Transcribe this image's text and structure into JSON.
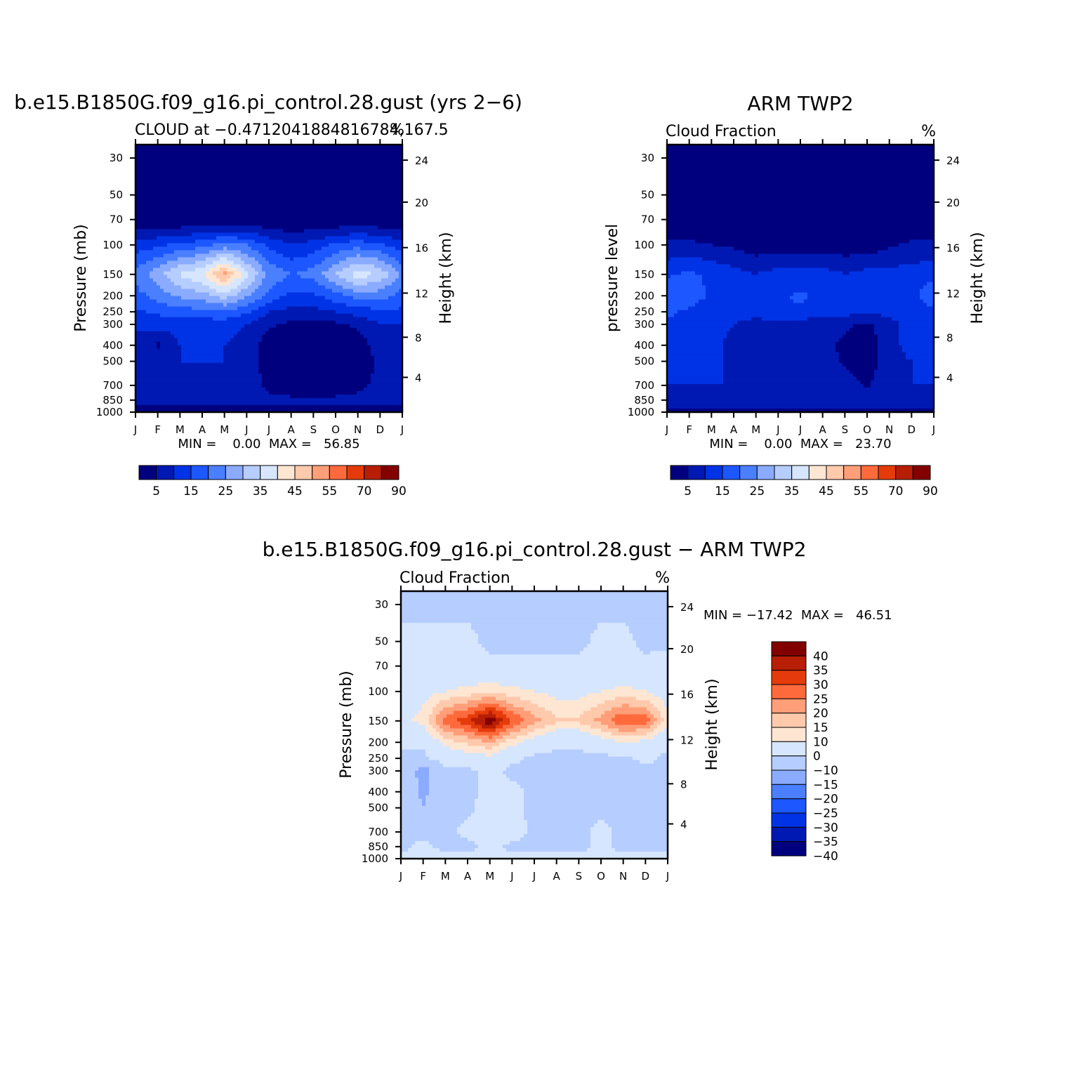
{
  "months": [
    "J",
    "F",
    "M",
    "A",
    "M",
    "J",
    "J",
    "A",
    "S",
    "O",
    "N",
    "D",
    "J"
  ],
  "pressure_ticks": [
    30,
    50,
    70,
    100,
    150,
    200,
    250,
    300,
    400,
    500,
    700,
    850,
    1000
  ],
  "height_ticks": [
    24,
    20,
    16,
    12,
    8,
    4
  ],
  "panels": {
    "model": {
      "title": "b.e15.B1850G.f09_g16.pi_control.28.gust (yrs 2−6)",
      "subtitle_left": "CLOUD at −0.4712041884816784,167.5",
      "subtitle_right": "%",
      "ylabel_left": "Pressure (mb)",
      "ylabel_right": "Height (km)",
      "minmax": "MIN =    0.00  MAX =   56.85"
    },
    "obs": {
      "title": "ARM TWP2",
      "subtitle_left": "Cloud Fraction",
      "subtitle_right": "%",
      "ylabel_left": "pressure level",
      "ylabel_right": "Height (km)",
      "minmax": "MIN =    0.00  MAX =   23.70"
    },
    "diff": {
      "title": "b.e15.B1850G.f09_g16.pi_control.28.gust − ARM TWP2",
      "subtitle_left": "Cloud Fraction",
      "subtitle_right": "%",
      "ylabel_left": "Pressure (mb)",
      "ylabel_right": "Height (km)",
      "minmax": "MIN = −17.42  MAX =   46.51"
    }
  },
  "colorbars": {
    "abs": {
      "colors": [
        "#00007f",
        "#0019b2",
        "#0033e5",
        "#1d57ff",
        "#4a7fff",
        "#8aabff",
        "#b6cdff",
        "#d6e6ff",
        "#ffe6d2",
        "#ffc9ac",
        "#ff9e78",
        "#ff6a3c",
        "#e53b0a",
        "#b81e05",
        "#820000"
      ],
      "labels": [
        "5",
        "15",
        "25",
        "35",
        "45",
        "55",
        "70",
        "90"
      ]
    },
    "diff": {
      "colors": [
        "#820000",
        "#b81e05",
        "#e53b0a",
        "#ff6a3c",
        "#ff9e78",
        "#ffc9ac",
        "#ffe6d2",
        "#d6e6ff",
        "#b6cdff",
        "#8aabff",
        "#4a7fff",
        "#1d57ff",
        "#0033e5",
        "#0019b2",
        "#00007f"
      ],
      "labels": [
        "40",
        "35",
        "30",
        "25",
        "20",
        "15",
        "10",
        "0",
        "−10",
        "−15",
        "−20",
        "−25",
        "−30",
        "−35",
        "−40"
      ]
    }
  },
  "chart_data": [
    {
      "type": "heatmap",
      "title": "b.e15.B1850G.f09_g16.pi_control.28.gust (yrs 2−6)",
      "variable": "CLOUD",
      "units": "%",
      "x": [
        "J",
        "F",
        "M",
        "A",
        "M",
        "J",
        "J",
        "A",
        "S",
        "O",
        "N",
        "D",
        "J"
      ],
      "y_pressure_mb": [
        30,
        50,
        70,
        100,
        150,
        200,
        250,
        300,
        400,
        500,
        700,
        850,
        1000
      ],
      "y_height_km": [
        24,
        20,
        16,
        12,
        8,
        4
      ],
      "min": 0.0,
      "max": 56.85,
      "values": [
        [
          0,
          0,
          0,
          0,
          0,
          0,
          0,
          0,
          0,
          0,
          0,
          0,
          0
        ],
        [
          0,
          0,
          0,
          0,
          0,
          0,
          0,
          0,
          0,
          0,
          0,
          0,
          0
        ],
        [
          0,
          0,
          0,
          0,
          0,
          0,
          0,
          0,
          0,
          0,
          0,
          0,
          0
        ],
        [
          12,
          14,
          16,
          18,
          22,
          20,
          14,
          10,
          12,
          16,
          18,
          16,
          12
        ],
        [
          22,
          28,
          36,
          40,
          52,
          36,
          24,
          20,
          22,
          30,
          38,
          34,
          24
        ],
        [
          18,
          22,
          26,
          28,
          32,
          26,
          18,
          14,
          14,
          18,
          22,
          22,
          18
        ],
        [
          14,
          16,
          18,
          18,
          20,
          16,
          10,
          8,
          8,
          10,
          12,
          14,
          14
        ],
        [
          10,
          12,
          12,
          12,
          12,
          10,
          6,
          4,
          4,
          4,
          6,
          10,
          10
        ],
        [
          10,
          4,
          10,
          10,
          10,
          8,
          2,
          2,
          2,
          2,
          2,
          8,
          10
        ],
        [
          10,
          8,
          10,
          10,
          10,
          8,
          2,
          2,
          2,
          2,
          2,
          6,
          10
        ],
        [
          8,
          8,
          8,
          8,
          10,
          8,
          4,
          2,
          2,
          2,
          4,
          6,
          8
        ],
        [
          6,
          6,
          6,
          6,
          6,
          6,
          6,
          6,
          6,
          6,
          6,
          6,
          6
        ],
        [
          4,
          4,
          4,
          4,
          4,
          4,
          4,
          4,
          4,
          4,
          4,
          4,
          4
        ]
      ]
    },
    {
      "type": "heatmap",
      "title": "ARM TWP2",
      "variable": "Cloud Fraction",
      "units": "%",
      "x": [
        "J",
        "F",
        "M",
        "A",
        "M",
        "J",
        "J",
        "A",
        "S",
        "O",
        "N",
        "D",
        "J"
      ],
      "y_pressure_mb": [
        30,
        50,
        70,
        100,
        150,
        200,
        250,
        300,
        400,
        500,
        700,
        850,
        1000
      ],
      "y_height_km": [
        24,
        20,
        16,
        12,
        8,
        4
      ],
      "min": 0.0,
      "max": 23.7,
      "values": [
        [
          0,
          0,
          0,
          0,
          0,
          0,
          0,
          0,
          0,
          0,
          0,
          0,
          0
        ],
        [
          0,
          0,
          0,
          0,
          0,
          0,
          0,
          0,
          0,
          0,
          0,
          0,
          0
        ],
        [
          0,
          0,
          0,
          0,
          0,
          0,
          0,
          0,
          0,
          0,
          0,
          0,
          0
        ],
        [
          6,
          6,
          5,
          4,
          2,
          2,
          2,
          2,
          2,
          2,
          4,
          6,
          6
        ],
        [
          14,
          16,
          14,
          12,
          10,
          12,
          12,
          12,
          10,
          12,
          12,
          12,
          14
        ],
        [
          20,
          18,
          14,
          12,
          12,
          14,
          16,
          14,
          12,
          12,
          14,
          14,
          18
        ],
        [
          16,
          14,
          12,
          12,
          12,
          14,
          14,
          12,
          12,
          10,
          12,
          12,
          14
        ],
        [
          14,
          14,
          12,
          10,
          8,
          8,
          8,
          6,
          6,
          4,
          8,
          12,
          12
        ],
        [
          14,
          14,
          12,
          8,
          8,
          8,
          8,
          6,
          4,
          2,
          8,
          12,
          14
        ],
        [
          14,
          14,
          12,
          8,
          8,
          8,
          8,
          8,
          4,
          2,
          8,
          10,
          14
        ],
        [
          10,
          10,
          10,
          10,
          6,
          8,
          6,
          8,
          8,
          4,
          10,
          10,
          10
        ],
        [
          8,
          8,
          8,
          8,
          8,
          8,
          8,
          8,
          8,
          8,
          8,
          8,
          8
        ],
        [
          4,
          4,
          4,
          4,
          4,
          4,
          4,
          4,
          4,
          4,
          4,
          4,
          4
        ]
      ]
    },
    {
      "type": "heatmap",
      "title": "b.e15.B1850G.f09_g16.pi_control.28.gust − ARM TWP2",
      "variable": "Cloud Fraction",
      "units": "%",
      "x": [
        "J",
        "F",
        "M",
        "A",
        "M",
        "J",
        "J",
        "A",
        "S",
        "O",
        "N",
        "D",
        "J"
      ],
      "y_pressure_mb": [
        30,
        50,
        70,
        100,
        150,
        200,
        250,
        300,
        400,
        500,
        700,
        850,
        1000
      ],
      "y_height_km": [
        24,
        20,
        16,
        12,
        8,
        4
      ],
      "min": -17.42,
      "max": 46.51,
      "values": [
        [
          -2,
          -2,
          -2,
          -2,
          -2,
          -2,
          -2,
          -2,
          -2,
          -2,
          -2,
          -2,
          -2
        ],
        [
          2,
          2,
          2,
          2,
          -2,
          -2,
          -2,
          -2,
          -2,
          2,
          2,
          -2,
          -2
        ],
        [
          4,
          4,
          4,
          2,
          2,
          2,
          2,
          2,
          2,
          2,
          2,
          2,
          4
        ],
        [
          6,
          8,
          10,
          12,
          14,
          12,
          10,
          8,
          8,
          10,
          12,
          10,
          6
        ],
        [
          8,
          12,
          28,
          34,
          44,
          30,
          22,
          16,
          16,
          22,
          30,
          28,
          12
        ],
        [
          2,
          2,
          12,
          16,
          20,
          12,
          6,
          2,
          2,
          6,
          10,
          8,
          2
        ],
        [
          -2,
          -2,
          4,
          6,
          8,
          2,
          -2,
          -2,
          -2,
          -2,
          -2,
          2,
          -2
        ],
        [
          -2,
          -14,
          -2,
          -2,
          2,
          -2,
          -2,
          -2,
          -2,
          -2,
          -2,
          -2,
          -2
        ],
        [
          -2,
          -12,
          -4,
          -2,
          2,
          2,
          -2,
          -2,
          -2,
          -2,
          -2,
          -2,
          -2
        ],
        [
          -2,
          -10,
          -2,
          -2,
          4,
          2,
          -2,
          -2,
          -2,
          -2,
          -2,
          -2,
          -2
        ],
        [
          -2,
          -2,
          -2,
          2,
          6,
          4,
          -2,
          -2,
          -2,
          2,
          -2,
          -2,
          -2
        ],
        [
          -2,
          2,
          -2,
          -2,
          2,
          -2,
          -2,
          -2,
          -2,
          2,
          -2,
          -2,
          -2
        ],
        [
          2,
          2,
          2,
          2,
          2,
          2,
          2,
          2,
          2,
          2,
          2,
          2,
          2
        ]
      ]
    }
  ]
}
